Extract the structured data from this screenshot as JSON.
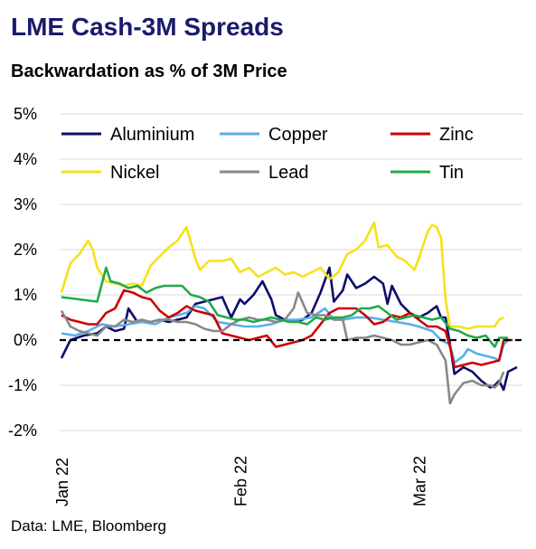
{
  "title": "LME Cash-3M Spreads",
  "subtitle": "Backwardation as % of 3M Price",
  "source": "Data: LME, Bloomberg",
  "chart_data": {
    "type": "line",
    "title": "LME Cash-3M Spreads",
    "subtitle": "Backwardation as % of 3M Price",
    "xlabel": "",
    "ylabel": "",
    "ylim": [
      -2,
      5
    ],
    "y_ticks": [
      "5%",
      "4%",
      "3%",
      "2%",
      "1%",
      "0%",
      "-1%",
      "-2%"
    ],
    "y_tick_values": [
      5,
      4,
      3,
      2,
      1,
      0,
      -1,
      -2
    ],
    "x_tick_labels": [
      "Jan 22",
      "Feb 22",
      "Mar 22"
    ],
    "x_tick_index": [
      0,
      40,
      80
    ],
    "grid": "horizontal",
    "zero_line": "dashed",
    "legend_placement": "top",
    "n_points": 88,
    "series": [
      {
        "name": "Aluminium",
        "color": "#0d0d6b",
        "points": [
          [
            0,
            -0.4
          ],
          [
            2,
            0.0
          ],
          [
            5,
            0.1
          ],
          [
            8,
            0.15
          ],
          [
            10,
            0.3
          ],
          [
            12,
            0.2
          ],
          [
            14,
            0.25
          ],
          [
            15,
            0.7
          ],
          [
            17,
            0.4
          ],
          [
            20,
            0.4
          ],
          [
            22,
            0.45
          ],
          [
            24,
            0.4
          ],
          [
            26,
            0.45
          ],
          [
            28,
            0.5
          ],
          [
            30,
            0.8
          ],
          [
            32,
            0.85
          ],
          [
            34,
            0.9
          ],
          [
            36,
            0.95
          ],
          [
            38,
            0.5
          ],
          [
            40,
            0.9
          ],
          [
            41,
            0.8
          ],
          [
            43,
            1.0
          ],
          [
            45,
            1.3
          ],
          [
            47,
            0.9
          ],
          [
            48,
            0.55
          ],
          [
            50,
            0.45
          ],
          [
            52,
            0.4
          ],
          [
            54,
            0.45
          ],
          [
            56,
            0.6
          ],
          [
            58,
            1.05
          ],
          [
            60,
            1.6
          ],
          [
            61,
            0.85
          ],
          [
            63,
            1.1
          ],
          [
            64,
            1.45
          ],
          [
            66,
            1.15
          ],
          [
            68,
            1.25
          ],
          [
            70,
            1.4
          ],
          [
            72,
            1.25
          ],
          [
            73,
            0.8
          ],
          [
            74,
            1.2
          ],
          [
            76,
            0.8
          ],
          [
            78,
            0.6
          ],
          [
            80,
            0.5
          ],
          [
            82,
            0.6
          ],
          [
            84,
            0.75
          ],
          [
            85,
            0.5
          ],
          [
            86,
            0.5
          ],
          [
            87,
            -0.1
          ],
          [
            88,
            -0.75
          ],
          [
            90,
            -0.6
          ],
          [
            92,
            -0.7
          ],
          [
            94,
            -0.9
          ],
          [
            96,
            -1.05
          ],
          [
            97,
            -1.0
          ],
          [
            98,
            -0.9
          ],
          [
            99,
            -1.1
          ],
          [
            100,
            -0.7
          ],
          [
            102,
            -0.6
          ]
        ]
      },
      {
        "name": "Copper",
        "color": "#5aaeea",
        "points": [
          [
            0,
            0.15
          ],
          [
            3,
            0.1
          ],
          [
            6,
            0.2
          ],
          [
            9,
            0.35
          ],
          [
            12,
            0.3
          ],
          [
            15,
            0.35
          ],
          [
            18,
            0.4
          ],
          [
            21,
            0.35
          ],
          [
            24,
            0.5
          ],
          [
            26,
            0.55
          ],
          [
            28,
            0.6
          ],
          [
            30,
            0.75
          ],
          [
            32,
            0.7
          ],
          [
            35,
            0.4
          ],
          [
            38,
            0.35
          ],
          [
            41,
            0.3
          ],
          [
            44,
            0.3
          ],
          [
            47,
            0.35
          ],
          [
            50,
            0.45
          ],
          [
            53,
            0.45
          ],
          [
            56,
            0.5
          ],
          [
            59,
            0.7
          ],
          [
            61,
            0.45
          ],
          [
            63,
            0.45
          ],
          [
            66,
            0.5
          ],
          [
            69,
            0.5
          ],
          [
            72,
            0.45
          ],
          [
            75,
            0.4
          ],
          [
            78,
            0.35
          ],
          [
            80,
            0.3
          ],
          [
            83,
            0.2
          ],
          [
            85,
            0.0
          ],
          [
            87,
            -0.1
          ],
          [
            88,
            -0.5
          ],
          [
            90,
            -0.35
          ],
          [
            91,
            -0.2
          ],
          [
            93,
            -0.3
          ],
          [
            95,
            -0.35
          ],
          [
            97,
            -0.4
          ],
          [
            98,
            -0.45
          ],
          [
            99,
            -0.1
          ],
          [
            100,
            0.0
          ]
        ]
      },
      {
        "name": "Zinc",
        "color": "#cc0000",
        "points": [
          [
            0,
            0.55
          ],
          [
            2,
            0.45
          ],
          [
            4,
            0.4
          ],
          [
            6,
            0.35
          ],
          [
            8,
            0.35
          ],
          [
            10,
            0.6
          ],
          [
            12,
            0.7
          ],
          [
            14,
            1.1
          ],
          [
            16,
            1.05
          ],
          [
            18,
            0.95
          ],
          [
            20,
            0.9
          ],
          [
            22,
            0.65
          ],
          [
            24,
            0.5
          ],
          [
            26,
            0.6
          ],
          [
            28,
            0.75
          ],
          [
            30,
            0.65
          ],
          [
            32,
            0.6
          ],
          [
            34,
            0.55
          ],
          [
            36,
            0.15
          ],
          [
            38,
            0.1
          ],
          [
            40,
            0.05
          ],
          [
            42,
            0.0
          ],
          [
            44,
            0.05
          ],
          [
            46,
            0.1
          ],
          [
            48,
            -0.15
          ],
          [
            50,
            -0.1
          ],
          [
            52,
            -0.05
          ],
          [
            54,
            0.0
          ],
          [
            56,
            0.1
          ],
          [
            58,
            0.35
          ],
          [
            60,
            0.6
          ],
          [
            62,
            0.7
          ],
          [
            64,
            0.7
          ],
          [
            66,
            0.7
          ],
          [
            68,
            0.55
          ],
          [
            70,
            0.35
          ],
          [
            72,
            0.4
          ],
          [
            74,
            0.55
          ],
          [
            76,
            0.5
          ],
          [
            78,
            0.6
          ],
          [
            80,
            0.45
          ],
          [
            82,
            0.3
          ],
          [
            84,
            0.3
          ],
          [
            86,
            0.2
          ],
          [
            87,
            -0.15
          ],
          [
            88,
            -0.6
          ],
          [
            90,
            -0.55
          ],
          [
            92,
            -0.5
          ],
          [
            94,
            -0.55
          ],
          [
            96,
            -0.5
          ],
          [
            98,
            -0.45
          ],
          [
            99,
            0.0
          ],
          [
            101,
            0.0
          ]
        ]
      },
      {
        "name": "Nickel",
        "color": "#f5e11a",
        "points": [
          [
            0,
            1.05
          ],
          [
            2,
            1.7
          ],
          [
            4,
            1.9
          ],
          [
            6,
            2.2
          ],
          [
            7,
            2.0
          ],
          [
            8,
            1.6
          ],
          [
            10,
            1.3
          ],
          [
            12,
            1.25
          ],
          [
            14,
            1.2
          ],
          [
            16,
            1.25
          ],
          [
            18,
            1.2
          ],
          [
            20,
            1.65
          ],
          [
            22,
            1.85
          ],
          [
            24,
            2.05
          ],
          [
            26,
            2.2
          ],
          [
            28,
            2.5
          ],
          [
            30,
            1.8
          ],
          [
            31,
            1.55
          ],
          [
            33,
            1.75
          ],
          [
            36,
            1.75
          ],
          [
            38,
            1.8
          ],
          [
            40,
            1.5
          ],
          [
            42,
            1.6
          ],
          [
            44,
            1.4
          ],
          [
            46,
            1.5
          ],
          [
            48,
            1.6
          ],
          [
            50,
            1.45
          ],
          [
            52,
            1.5
          ],
          [
            54,
            1.4
          ],
          [
            56,
            1.5
          ],
          [
            58,
            1.6
          ],
          [
            60,
            1.35
          ],
          [
            62,
            1.5
          ],
          [
            64,
            1.9
          ],
          [
            66,
            2.0
          ],
          [
            68,
            2.2
          ],
          [
            70,
            2.6
          ],
          [
            71,
            2.05
          ],
          [
            73,
            2.1
          ],
          [
            75,
            1.85
          ],
          [
            77,
            1.75
          ],
          [
            79,
            1.55
          ],
          [
            80,
            1.8
          ],
          [
            82,
            2.4
          ],
          [
            83,
            2.55
          ],
          [
            84,
            2.5
          ],
          [
            85,
            2.25
          ],
          [
            86,
            0.9
          ],
          [
            87,
            0.3
          ],
          [
            89,
            0.3
          ],
          [
            91,
            0.25
          ],
          [
            93,
            0.3
          ],
          [
            95,
            0.3
          ],
          [
            97,
            0.3
          ],
          [
            98,
            0.45
          ],
          [
            99,
            0.5
          ]
        ]
      },
      {
        "name": "Lead",
        "color": "#888888",
        "points": [
          [
            0,
            0.65
          ],
          [
            2,
            0.3
          ],
          [
            4,
            0.2
          ],
          [
            6,
            0.15
          ],
          [
            8,
            0.1
          ],
          [
            10,
            0.3
          ],
          [
            12,
            0.3
          ],
          [
            14,
            0.45
          ],
          [
            16,
            0.4
          ],
          [
            18,
            0.45
          ],
          [
            20,
            0.4
          ],
          [
            22,
            0.45
          ],
          [
            24,
            0.45
          ],
          [
            26,
            0.4
          ],
          [
            28,
            0.4
          ],
          [
            30,
            0.35
          ],
          [
            32,
            0.25
          ],
          [
            34,
            0.2
          ],
          [
            36,
            0.2
          ],
          [
            38,
            0.35
          ],
          [
            40,
            0.45
          ],
          [
            42,
            0.5
          ],
          [
            44,
            0.45
          ],
          [
            46,
            0.45
          ],
          [
            48,
            0.4
          ],
          [
            50,
            0.45
          ],
          [
            52,
            0.7
          ],
          [
            53,
            1.05
          ],
          [
            55,
            0.6
          ],
          [
            57,
            0.55
          ],
          [
            59,
            0.55
          ],
          [
            61,
            0.45
          ],
          [
            63,
            0.45
          ],
          [
            64,
            0.0
          ],
          [
            66,
            0.05
          ],
          [
            68,
            0.05
          ],
          [
            70,
            0.1
          ],
          [
            72,
            0.05
          ],
          [
            74,
            0.0
          ],
          [
            76,
            -0.1
          ],
          [
            78,
            -0.1
          ],
          [
            80,
            -0.05
          ],
          [
            82,
            0.0
          ],
          [
            84,
            -0.1
          ],
          [
            86,
            -0.45
          ],
          [
            87,
            -1.4
          ],
          [
            88,
            -1.2
          ],
          [
            90,
            -0.95
          ],
          [
            92,
            -0.9
          ],
          [
            94,
            -1.0
          ],
          [
            96,
            -1.0
          ],
          [
            97,
            -1.05
          ],
          [
            98,
            -0.95
          ],
          [
            99,
            -0.7
          ]
        ]
      },
      {
        "name": "Tin",
        "color": "#1faa4b",
        "points": [
          [
            0,
            0.95
          ],
          [
            4,
            0.9
          ],
          [
            8,
            0.85
          ],
          [
            10,
            1.6
          ],
          [
            11,
            1.3
          ],
          [
            13,
            1.25
          ],
          [
            15,
            1.15
          ],
          [
            17,
            1.2
          ],
          [
            19,
            1.05
          ],
          [
            21,
            1.15
          ],
          [
            23,
            1.2
          ],
          [
            25,
            1.2
          ],
          [
            27,
            1.2
          ],
          [
            29,
            1.0
          ],
          [
            31,
            0.95
          ],
          [
            33,
            0.85
          ],
          [
            35,
            0.55
          ],
          [
            37,
            0.5
          ],
          [
            39,
            0.45
          ],
          [
            41,
            0.45
          ],
          [
            43,
            0.4
          ],
          [
            45,
            0.45
          ],
          [
            47,
            0.5
          ],
          [
            49,
            0.45
          ],
          [
            51,
            0.4
          ],
          [
            53,
            0.4
          ],
          [
            55,
            0.35
          ],
          [
            57,
            0.5
          ],
          [
            59,
            0.45
          ],
          [
            61,
            0.5
          ],
          [
            63,
            0.5
          ],
          [
            65,
            0.55
          ],
          [
            67,
            0.7
          ],
          [
            69,
            0.7
          ],
          [
            71,
            0.75
          ],
          [
            73,
            0.6
          ],
          [
            75,
            0.45
          ],
          [
            77,
            0.5
          ],
          [
            79,
            0.55
          ],
          [
            81,
            0.5
          ],
          [
            83,
            0.45
          ],
          [
            85,
            0.5
          ],
          [
            87,
            0.25
          ],
          [
            89,
            0.2
          ],
          [
            91,
            0.1
          ],
          [
            93,
            0.05
          ],
          [
            95,
            0.1
          ],
          [
            97,
            -0.15
          ],
          [
            98,
            0.05
          ],
          [
            100,
            0.05
          ]
        ]
      }
    ]
  }
}
